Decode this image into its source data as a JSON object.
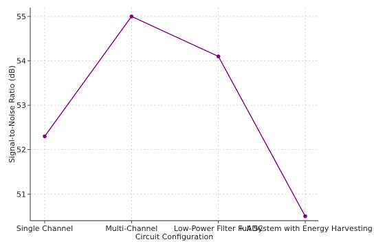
{
  "chart_data": {
    "type": "line",
    "title": "",
    "xlabel": "Circuit Configuration",
    "ylabel": "Signal-to-Noise Ratio (dB)",
    "categories": [
      "Single Channel",
      "Multi-Channel",
      "Low-Power Filter + ADC",
      "Full System with Energy Harvesting"
    ],
    "series": [
      {
        "values": [
          52.3,
          55.0,
          54.1,
          50.5
        ]
      }
    ],
    "ylim": [
      50.4,
      55.2
    ],
    "yticks": [
      51,
      52,
      53,
      54,
      55
    ],
    "grid": true,
    "line_color": "#800080",
    "marker_color": "#800080"
  }
}
